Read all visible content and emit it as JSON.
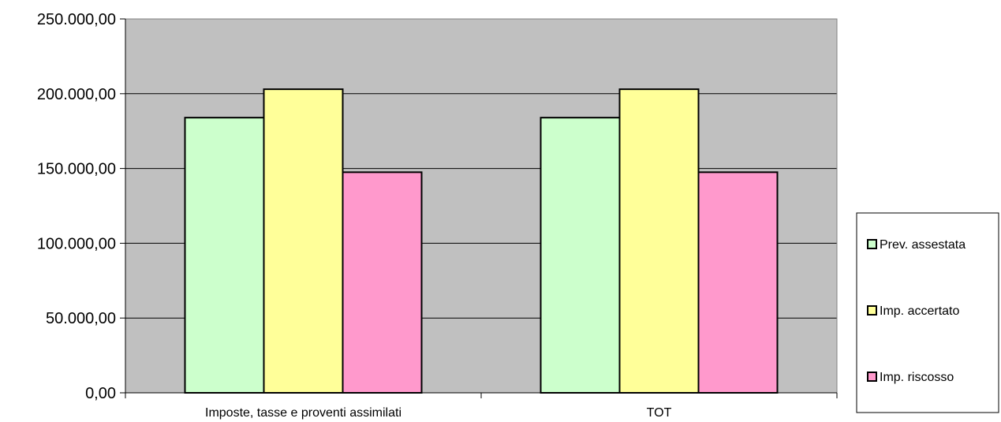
{
  "chart_data": {
    "type": "bar",
    "categories": [
      "Imposte, tasse e proventi assimilati",
      "TOT"
    ],
    "series": [
      {
        "name": "Prev. assestata",
        "values": [
          184000,
          184000
        ],
        "color": "#ccffcc"
      },
      {
        "name": "Imp. accertato",
        "values": [
          203000,
          203000
        ],
        "color": "#ffff99"
      },
      {
        "name": "Imp. riscosso",
        "values": [
          147500,
          147500
        ],
        "color": "#ff99cc"
      }
    ],
    "y_ticks": [
      "0,00",
      "50.000,00",
      "100.000,00",
      "150.000,00",
      "200.000,00",
      "250.000,00"
    ],
    "ylim": [
      0,
      250000
    ],
    "y_step": 50000,
    "grid": true,
    "plot_background": "#c0c0c0",
    "legend": "right"
  }
}
